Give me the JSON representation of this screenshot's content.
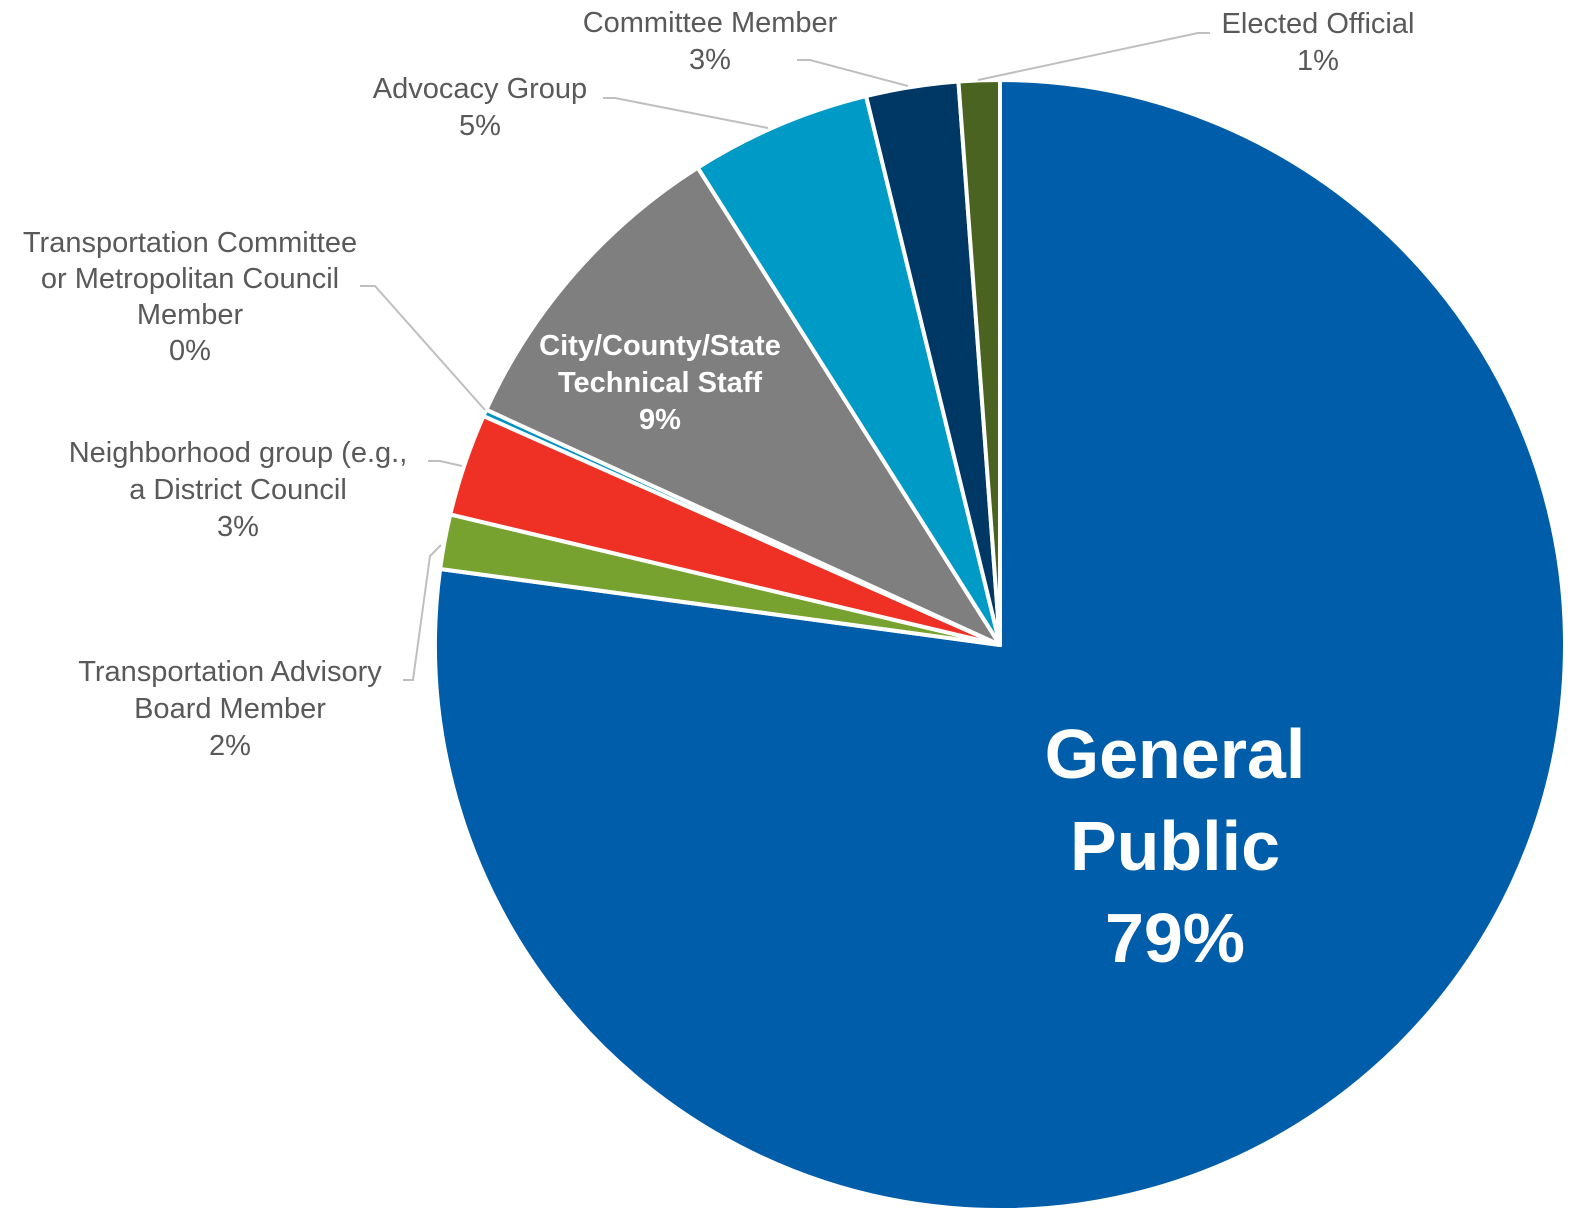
{
  "chart_data": {
    "type": "pie",
    "title": "",
    "start_angle_deg": 0,
    "direction": "clockwise",
    "slices": [
      {
        "label": "General Public",
        "value": 79,
        "display": "79%",
        "color": "#005DAA"
      },
      {
        "label": "Transportation Advisory Board Member",
        "value": 1.6,
        "display": "2%",
        "color": "#78A22F"
      },
      {
        "label": "Neighborhood group (e.g., a District Council",
        "value": 3.0,
        "display": "3%",
        "color": "#EE3124"
      },
      {
        "label": "Transportation Committee or Metropolitan Council Member",
        "value": 0.2,
        "display": "0%",
        "color": "#0091C2"
      },
      {
        "label": "City/County/State Technical Staff",
        "value": 9.4,
        "display": "9%",
        "color": "#7F7F7F"
      },
      {
        "label": "Advocacy Group",
        "value": 5.3,
        "display": "5%",
        "color": "#009AC7"
      },
      {
        "label": "Committee Member",
        "value": 2.7,
        "display": "3%",
        "color": "#003865"
      },
      {
        "label": "Elected Official",
        "value": 1.2,
        "display": "1%",
        "color": "#4A6320"
      }
    ],
    "label_color_outside": "#595959",
    "label_color_inside": "#FFFFFF",
    "leader_line_color": "#BFBFBF"
  }
}
